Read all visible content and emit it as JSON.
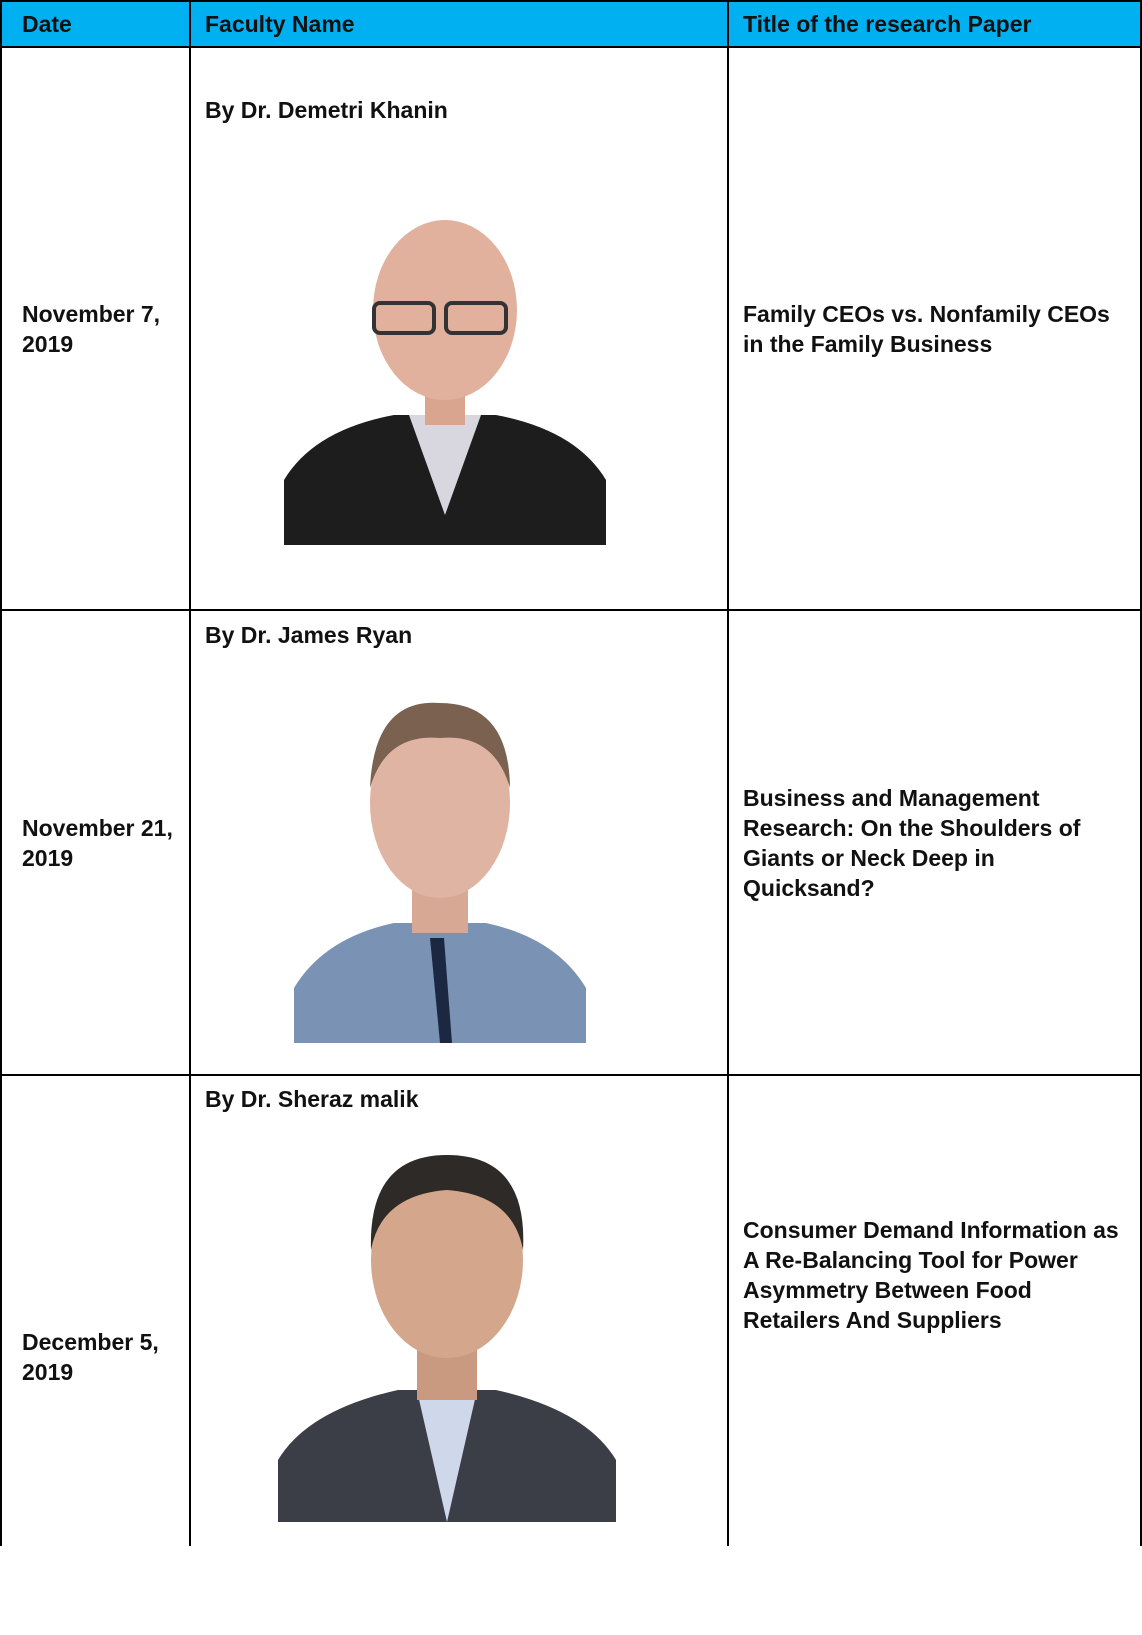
{
  "table": {
    "header": [
      "Date",
      "Faculty Name",
      "Title of the research Paper"
    ],
    "rows": [
      {
        "date": "November 7, 2019",
        "faculty": "By Dr. Demetri Khanin",
        "title": "Family CEOs vs. Nonfamily CEOs in the Family Business"
      },
      {
        "date": "November 21, 2019",
        "faculty": "By Dr. James Ryan",
        "title": "Business and Management Research: On the Shoulders of Giants or Neck Deep in Quicksand?"
      },
      {
        "date": "December 5, 2019",
        "faculty": "By Dr. Sheraz malik",
        "title": "Consumer Demand Information as A Re-Balancing Tool for Power Asymmetry Between Food Retailers And Suppliers"
      }
    ]
  }
}
